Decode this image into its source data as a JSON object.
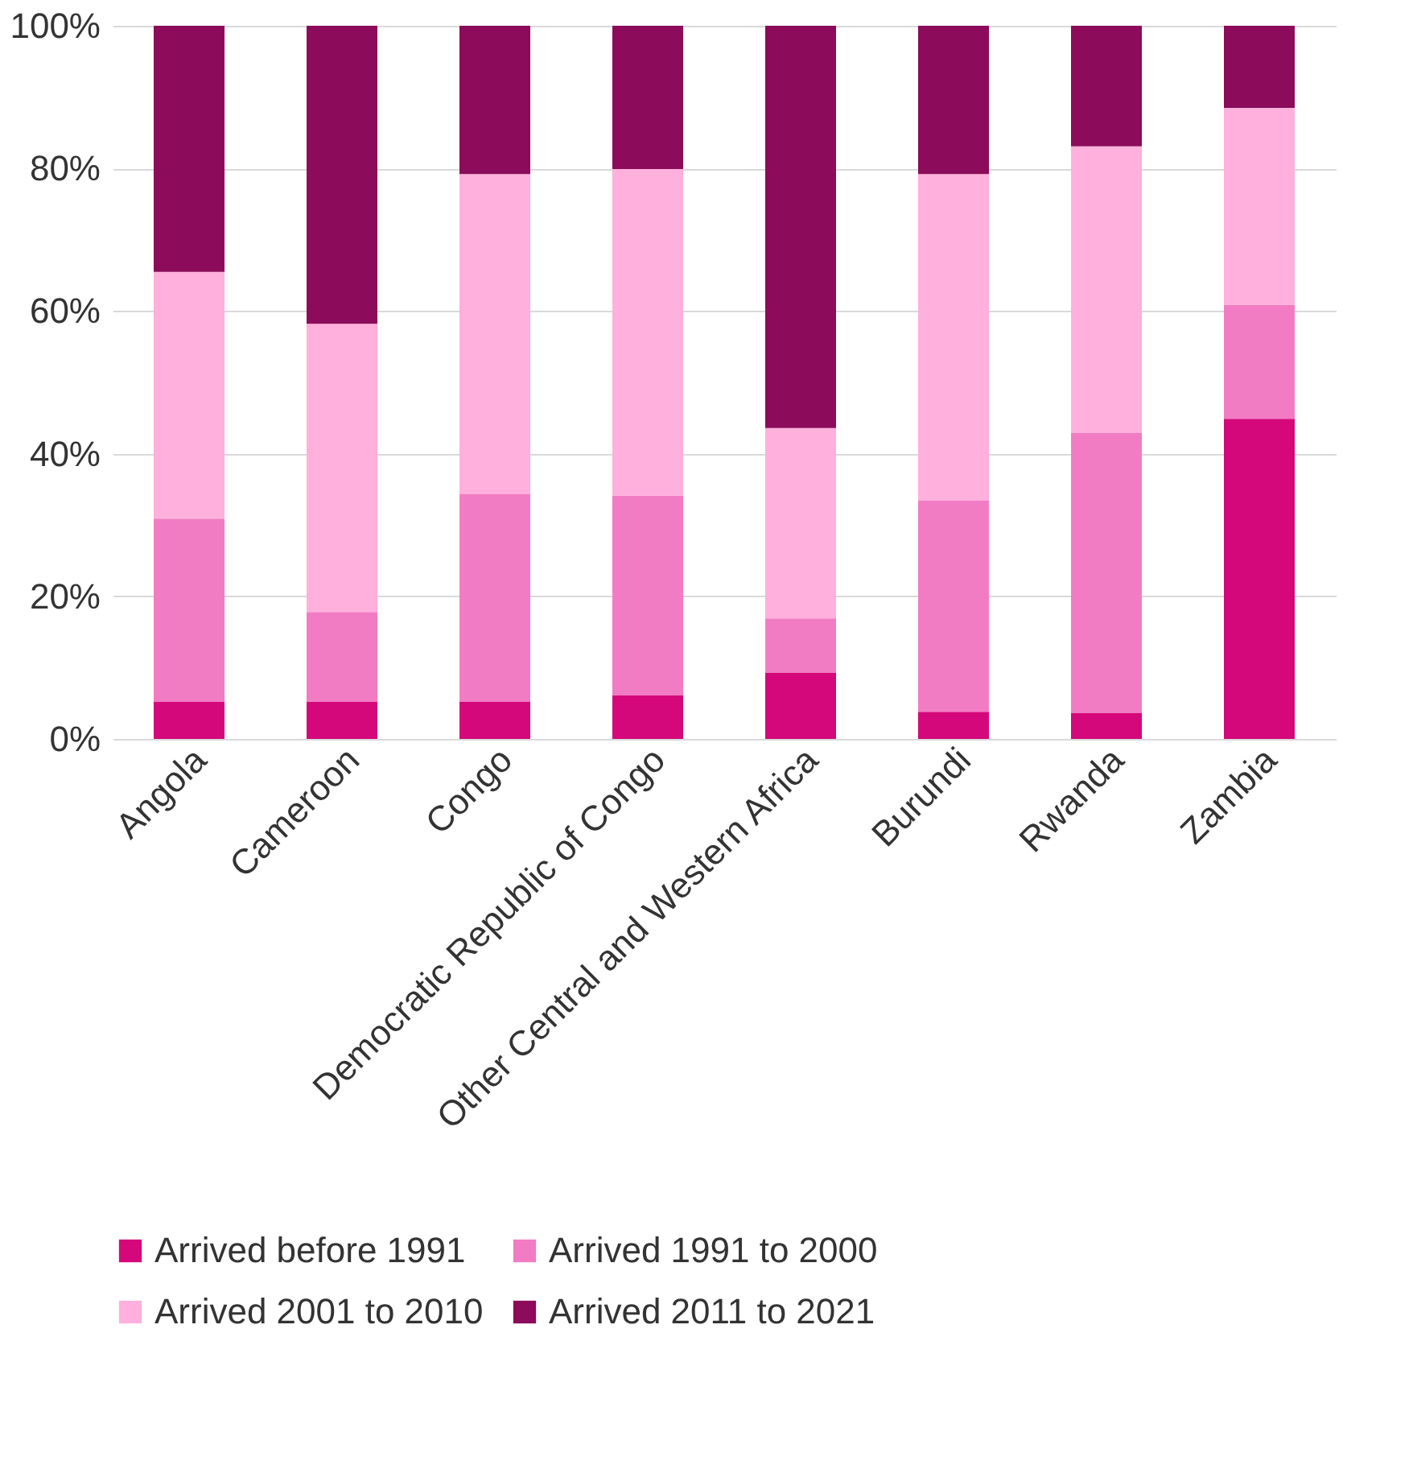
{
  "chart_data": {
    "type": "bar",
    "stacked": true,
    "categories": [
      "Angola",
      "Cameroon",
      "Congo",
      "Democratic Republic of Congo",
      "Other Central and Western Africa",
      "Burundi",
      "Rwanda",
      "Zambia"
    ],
    "series": [
      {
        "name": "Arrived before 1991",
        "color": "#d4087a",
        "values": [
          5.2,
          5.2,
          5.2,
          6.1,
          9.3,
          3.8,
          3.6,
          44.9
        ]
      },
      {
        "name": "Arrived 1991 to 2000",
        "color": "#f27cc4",
        "values": [
          25.7,
          12.6,
          29.1,
          28.0,
          7.6,
          29.6,
          39.3,
          16.0
        ]
      },
      {
        "name": "Arrived 2001 to 2010",
        "color": "#ffb0dc",
        "values": [
          34.6,
          40.4,
          44.9,
          45.8,
          26.7,
          45.8,
          40.2,
          27.6
        ]
      },
      {
        "name": "Arrived 2011 to 2021",
        "color": "#8c0b5a",
        "values": [
          34.5,
          41.8,
          20.8,
          20.1,
          56.4,
          20.8,
          16.9,
          11.5
        ]
      }
    ],
    "ylim": [
      0,
      100
    ],
    "yticks": [
      {
        "value": 0,
        "label": "0%"
      },
      {
        "value": 20,
        "label": "20%"
      },
      {
        "value": 40,
        "label": "40%"
      },
      {
        "value": 60,
        "label": "60%"
      },
      {
        "value": 80,
        "label": "80%"
      },
      {
        "value": 100,
        "label": "100%"
      }
    ],
    "grid": "y",
    "legend": "bottom"
  }
}
